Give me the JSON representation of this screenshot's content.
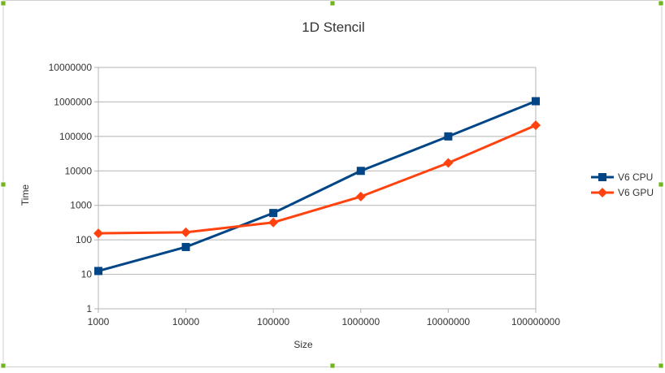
{
  "chart_data": {
    "type": "line",
    "title": "1D Stencil",
    "xlabel": "Size",
    "ylabel": "Time",
    "x_scale": "log",
    "y_scale": "log",
    "categories": [
      "1000",
      "10000",
      "100000",
      "1000000",
      "10000000",
      "100000000"
    ],
    "x": [
      1000,
      10000,
      100000,
      1000000,
      10000000,
      100000000
    ],
    "y_ticks": [
      "1",
      "10",
      "100",
      "1000",
      "10000",
      "100000",
      "1000000",
      "10000000"
    ],
    "ylim": [
      1,
      10000000
    ],
    "grid": true,
    "legend_position": "right",
    "series": [
      {
        "name": "V6 CPU",
        "color": "#004586",
        "marker": "square",
        "values": [
          12.5,
          62,
          600,
          10000,
          100000,
          1050000
        ]
      },
      {
        "name": "V6 GPU",
        "color": "#ff420e",
        "marker": "diamond",
        "values": [
          155,
          165,
          320,
          1800,
          17000,
          210000
        ]
      }
    ]
  },
  "frame": {
    "handle_color": "#72b41b",
    "grid_color": "#b3b3b3"
  }
}
